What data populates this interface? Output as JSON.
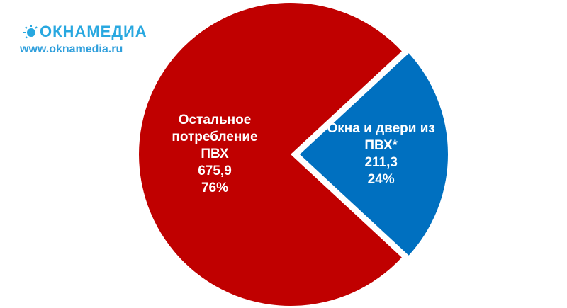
{
  "watermark": {
    "name": "ОКНАМЕДИА",
    "url": "www.oknamedia.ru"
  },
  "chart_data": {
    "type": "pie",
    "categories": [
      "Остальное потребление ПВХ",
      "Окна и двери из ПВХ*"
    ],
    "values": [
      675.9,
      211.3
    ],
    "value_labels": [
      "675,9",
      "211,3"
    ],
    "shares": [
      76,
      24
    ],
    "share_labels": [
      "76%",
      "24%"
    ],
    "colors": [
      "#c00000",
      "#0070c0"
    ],
    "exploded": [
      false,
      true
    ]
  }
}
